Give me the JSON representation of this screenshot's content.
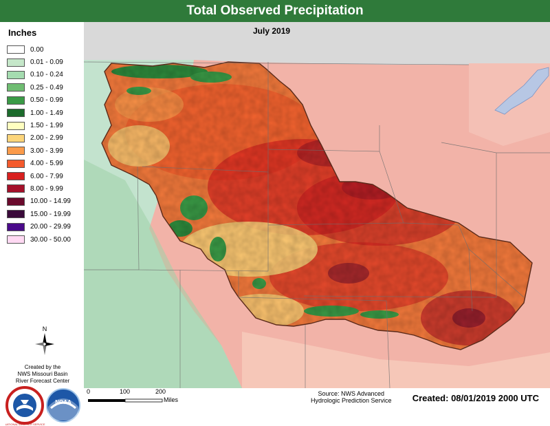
{
  "header": {
    "title": "Total Observed Precipitation",
    "period": "July 2019"
  },
  "legend": {
    "title": "Inches",
    "items": [
      {
        "label": "0.00",
        "color": "#ffffff"
      },
      {
        "label": "0.01 - 0.09",
        "color": "#c5e7c9"
      },
      {
        "label": "0.10 - 0.24",
        "color": "#a5dcb0"
      },
      {
        "label": "0.25 - 0.49",
        "color": "#6fbd72"
      },
      {
        "label": "0.50 - 0.99",
        "color": "#3a9a46"
      },
      {
        "label": "1.00 - 1.49",
        "color": "#1c6b2c"
      },
      {
        "label": "1.50 - 1.99",
        "color": "#ffffc0"
      },
      {
        "label": "2.00 - 2.99",
        "color": "#fcd57b"
      },
      {
        "label": "3.00 - 3.99",
        "color": "#fb9b4b"
      },
      {
        "label": "4.00 - 5.99",
        "color": "#f45a2c"
      },
      {
        "label": "6.00 - 7.99",
        "color": "#d8201f"
      },
      {
        "label": "8.00 - 9.99",
        "color": "#a5102a"
      },
      {
        "label": "10.00 - 14.99",
        "color": "#6a0a2c"
      },
      {
        "label": "15.00 - 19.99",
        "color": "#3a0a3a"
      },
      {
        "label": "20.00 - 29.99",
        "color": "#4a0a8a"
      },
      {
        "label": "30.00 - 50.00",
        "color": "#ffd9f3"
      }
    ]
  },
  "credit": {
    "lines": [
      "Created by the",
      "NWS Missouri Basin",
      "River Forecast Center"
    ]
  },
  "north_label": "N",
  "logos": {
    "nws": "NATIONAL WEATHER SERVICE",
    "noaa": "NOAA"
  },
  "scale": {
    "ticks": [
      "0",
      "100",
      "200"
    ],
    "unit": "Miles"
  },
  "source": {
    "lines": [
      "Source: NWS Advanced",
      "Hydrologic Prediction Service"
    ]
  },
  "created": "Created: 08/01/2019 2000 UTC"
}
